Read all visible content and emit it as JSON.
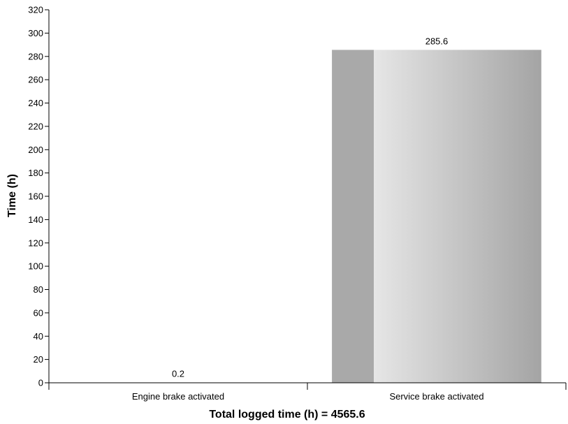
{
  "chart_data": {
    "type": "bar",
    "categories": [
      "Engine brake activated",
      "Service brake activated"
    ],
    "values": [
      0.2,
      285.6
    ],
    "value_labels": [
      "0.2",
      "285.6"
    ],
    "title": "",
    "xlabel": "Total logged time (h) = 4565.6",
    "ylabel": "Time (h)",
    "ylim": [
      0,
      320
    ],
    "ytick_step": 20,
    "grid": false,
    "legend": "none",
    "colors": {
      "bar_edge": "#a9a9a9",
      "bar_light": "#e6e6e6",
      "bar_dark": "#a4a4a4",
      "axis": "#000000"
    }
  }
}
